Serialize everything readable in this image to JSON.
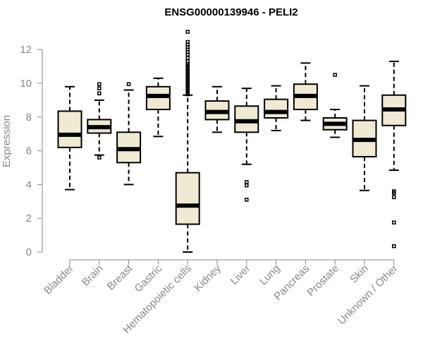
{
  "chart_data": {
    "type": "boxplot",
    "title": "ENSG00000139946 - PELI2",
    "xlabel": "",
    "ylabel": "Expression",
    "ylim": [
      0,
      12.4
    ],
    "yticks": [
      0,
      2,
      4,
      6,
      8,
      10,
      12
    ],
    "grid": false,
    "categories": [
      "Bladder",
      "Brain",
      "Breast",
      "Gastric",
      "Hematopoietic cells",
      "Kidney",
      "Liver",
      "Lung",
      "Pancreas",
      "Prostate",
      "Skin",
      "Unknown / Other"
    ],
    "boxes": [
      {
        "category": "Bladder",
        "whisker_low": 3.7,
        "q1": 6.2,
        "median": 6.95,
        "q3": 8.35,
        "whisker_high": 9.8,
        "outliers": []
      },
      {
        "category": "Brain",
        "whisker_low": 5.75,
        "q1": 7.05,
        "median": 7.4,
        "q3": 7.85,
        "whisker_high": 9.0,
        "outliers": [
          5.6,
          9.4,
          9.7,
          9.95
        ]
      },
      {
        "category": "Breast",
        "whisker_low": 4.0,
        "q1": 5.3,
        "median": 6.1,
        "q3": 7.1,
        "whisker_high": 9.6,
        "outliers": [
          9.95
        ]
      },
      {
        "category": "Gastric",
        "whisker_low": 6.85,
        "q1": 8.45,
        "median": 9.25,
        "q3": 9.8,
        "whisker_high": 10.3,
        "outliers": []
      },
      {
        "category": "Hematopoietic cells",
        "whisker_low": 0.0,
        "q1": 1.65,
        "median": 2.75,
        "q3": 4.7,
        "whisker_high": 9.3,
        "outliers": [
          9.35,
          9.45,
          9.55,
          9.65,
          9.75,
          9.85,
          9.95,
          10.05,
          10.15,
          10.25,
          10.35,
          10.45,
          10.55,
          10.65,
          10.75,
          10.85,
          10.95,
          11.05,
          11.15,
          11.3,
          11.5,
          11.7,
          11.85,
          12.0,
          12.15,
          12.3,
          12.45,
          13.05
        ]
      },
      {
        "category": "Kidney",
        "whisker_low": 7.1,
        "q1": 7.85,
        "median": 8.3,
        "q3": 8.95,
        "whisker_high": 9.8,
        "outliers": []
      },
      {
        "category": "Liver",
        "whisker_low": 5.2,
        "q1": 7.1,
        "median": 7.75,
        "q3": 8.65,
        "whisker_high": 9.7,
        "outliers": [
          3.1,
          3.95,
          4.15
        ]
      },
      {
        "category": "Lung",
        "whisker_low": 7.2,
        "q1": 7.95,
        "median": 8.3,
        "q3": 9.05,
        "whisker_high": 9.85,
        "outliers": []
      },
      {
        "category": "Pancreas",
        "whisker_low": 7.8,
        "q1": 8.45,
        "median": 9.25,
        "q3": 9.95,
        "whisker_high": 11.2,
        "outliers": []
      },
      {
        "category": "Prostate",
        "whisker_low": 6.8,
        "q1": 7.25,
        "median": 7.6,
        "q3": 7.95,
        "whisker_high": 8.45,
        "outliers": [
          10.5
        ]
      },
      {
        "category": "Skin",
        "whisker_low": 3.65,
        "q1": 5.65,
        "median": 6.65,
        "q3": 7.8,
        "whisker_high": 9.85,
        "outliers": []
      },
      {
        "category": "Unknown / Other",
        "whisker_low": 4.85,
        "q1": 7.5,
        "median": 8.45,
        "q3": 9.3,
        "whisker_high": 11.3,
        "outliers": [
          0.35,
          1.75,
          3.25,
          3.5,
          3.6
        ]
      }
    ],
    "colors": {
      "box_fill": "#f0ead2",
      "stroke": "#000000",
      "axis": "#888888"
    }
  }
}
